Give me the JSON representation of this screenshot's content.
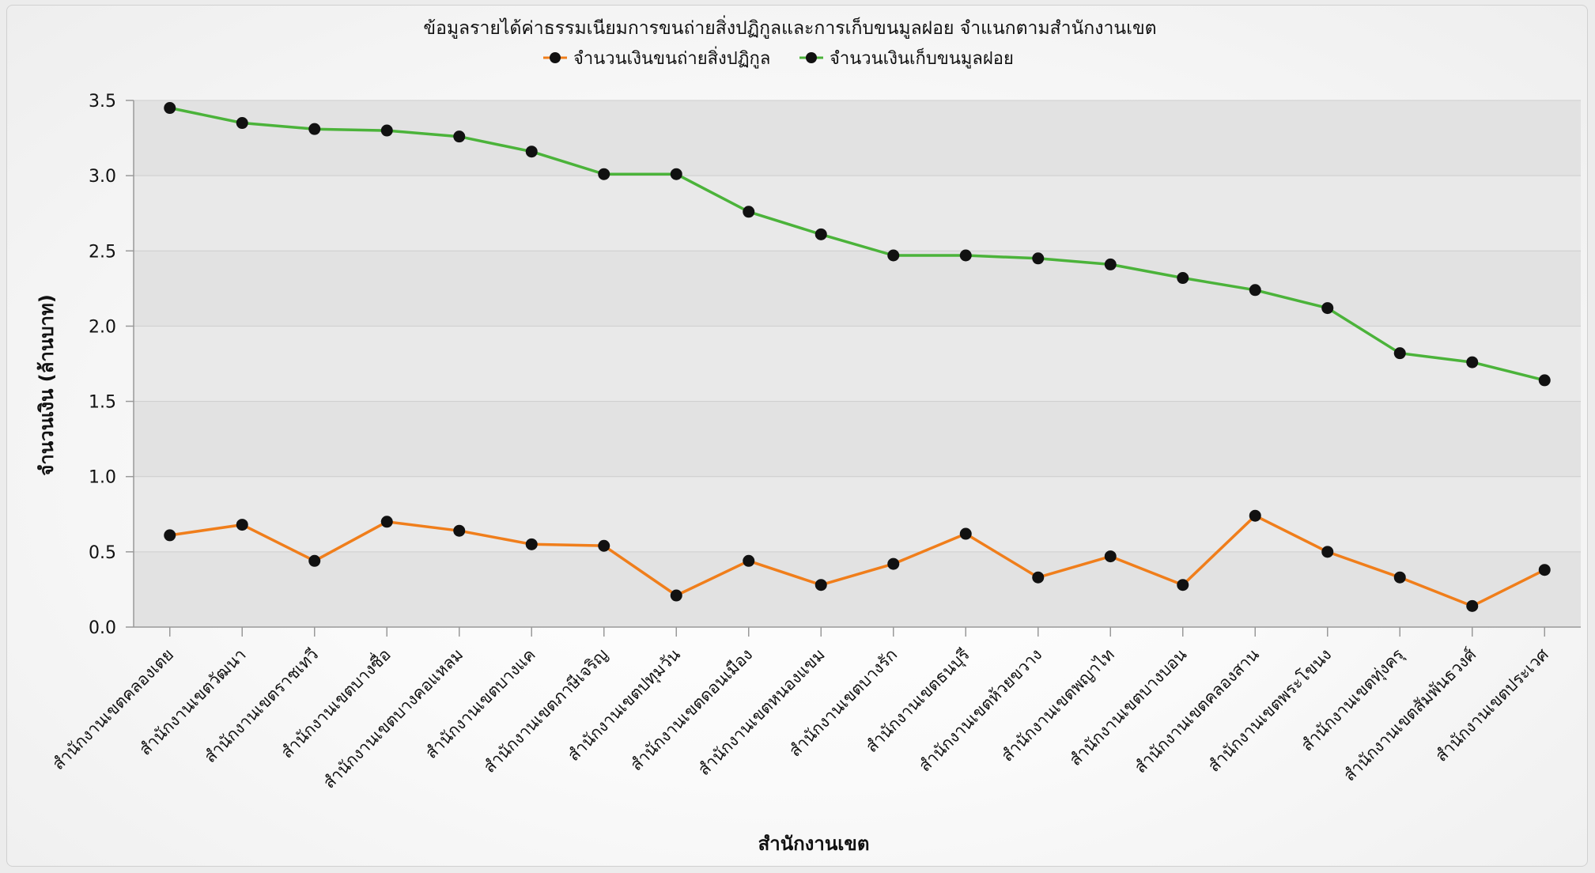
{
  "chart_data": {
    "type": "line",
    "title": "ข้อมูลรายได้ค่าธรรมเนียมการขนถ่ายสิ่งปฏิกูลและการเก็บขนมูลฝอย จำแนกตามสำนักงานเขต",
    "xlabel": "สำนักงานเขต",
    "ylabel": "จำนวนเงิน (ล้านบาท)",
    "ylim": [
      0,
      3.5
    ],
    "yticks": [
      "0.0",
      "0.5",
      "1.0",
      "1.5",
      "2.0",
      "2.5",
      "3.0",
      "3.5"
    ],
    "grid": true,
    "legend_position": "top",
    "categories": [
      "สำนักงานเขตคลองเตย",
      "สำนักงานเขตวัฒนา",
      "สำนักงานเขตราชเทวี",
      "สำนักงานเขตบางซื่อ",
      "สำนักงานเขตบางคอแหลม",
      "สำนักงานเขตบางแค",
      "สำนักงานเขตภาษีเจริญ",
      "สำนักงานเขตปทุมวัน",
      "สำนักงานเขตดอนเมือง",
      "สำนักงานเขตหนองแขม",
      "สำนักงานเขตบางรัก",
      "สำนักงานเขตธนบุรี",
      "สำนักงานเขตห้วยขวาง",
      "สำนักงานเขตพญาไท",
      "สำนักงานเขตบางบอน",
      "สำนักงานเขตคลองสาน",
      "สำนักงานเขตพระโขนง",
      "สำนักงานเขตทุ่งครุ",
      "สำนักงานเขตสัมพันธวงศ์",
      "สำนักงานเขตประเวศ"
    ],
    "series": [
      {
        "name": "จำนวนเงินขนถ่ายสิ่งปฏิกูล",
        "color": "#f07e1b",
        "values": [
          0.61,
          0.68,
          0.44,
          0.7,
          0.64,
          0.55,
          0.54,
          0.21,
          0.44,
          0.28,
          0.42,
          0.62,
          0.33,
          0.47,
          0.28,
          0.74,
          0.5,
          0.33,
          0.14,
          0.38
        ]
      },
      {
        "name": "จำนวนเงินเก็บขนมูลฝอย",
        "color": "#4bb33a",
        "values": [
          3.45,
          3.35,
          3.31,
          3.3,
          3.26,
          3.16,
          3.01,
          3.01,
          2.76,
          2.61,
          2.47,
          2.47,
          2.45,
          2.41,
          2.32,
          2.24,
          2.12,
          1.82,
          1.76,
          1.64
        ]
      }
    ]
  }
}
